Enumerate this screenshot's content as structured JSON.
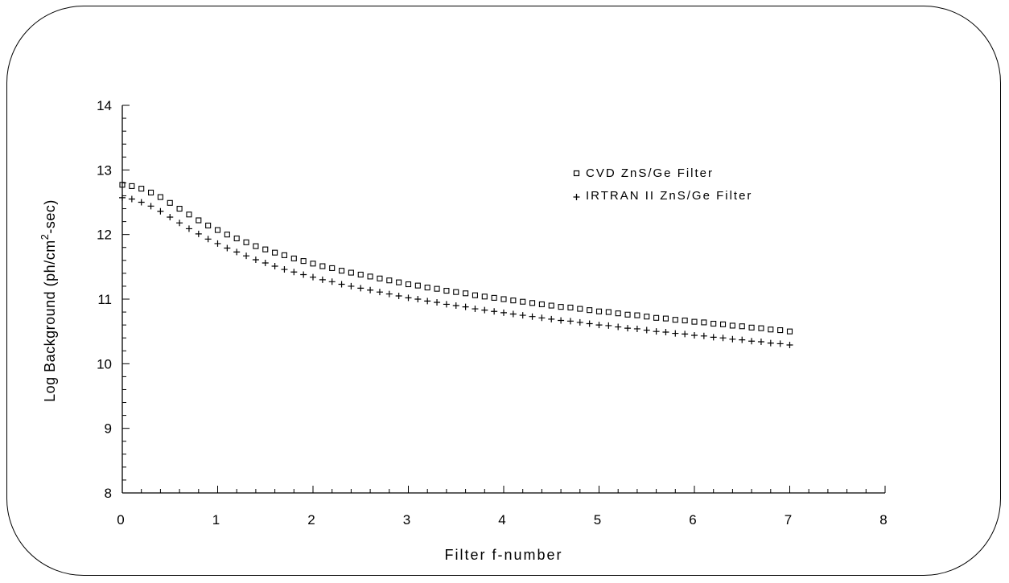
{
  "chart_data": {
    "type": "scatter",
    "title": "",
    "xlabel": "Filter f-number",
    "ylabel_main": "Log Background (ph/cm",
    "ylabel_sup": "2",
    "ylabel_tail": "-sec)",
    "xlim": [
      0,
      8
    ],
    "ylim": [
      8,
      14
    ],
    "xticks": [
      0,
      1,
      2,
      3,
      4,
      5,
      6,
      7,
      8
    ],
    "yticks": [
      8,
      9,
      10,
      11,
      12,
      13,
      14
    ],
    "legend_position": "top-right",
    "series": [
      {
        "name": "CVD ZnS/Ge Filter",
        "marker": "square",
        "x": [
          0,
          0.1,
          0.2,
          0.3,
          0.4,
          0.5,
          0.6,
          0.7,
          0.8,
          0.9,
          1.0,
          1.1,
          1.2,
          1.3,
          1.4,
          1.5,
          1.6,
          1.7,
          1.8,
          1.9,
          2.0,
          2.1,
          2.2,
          2.3,
          2.4,
          2.5,
          2.6,
          2.7,
          2.8,
          2.9,
          3.0,
          3.1,
          3.2,
          3.3,
          3.4,
          3.5,
          3.6,
          3.7,
          3.8,
          3.9,
          4.0,
          4.1,
          4.2,
          4.3,
          4.4,
          4.5,
          4.6,
          4.7,
          4.8,
          4.9,
          5.0,
          5.1,
          5.2,
          5.3,
          5.4,
          5.5,
          5.6,
          5.7,
          5.8,
          5.9,
          6.0,
          6.1,
          6.2,
          6.3,
          6.4,
          6.5,
          6.6,
          6.7,
          6.8,
          6.9,
          7.0
        ],
        "y": [
          12.77,
          12.75,
          12.71,
          12.65,
          12.58,
          12.49,
          12.4,
          12.31,
          12.22,
          12.14,
          12.07,
          12.0,
          11.94,
          11.88,
          11.82,
          11.77,
          11.72,
          11.68,
          11.63,
          11.59,
          11.55,
          11.51,
          11.48,
          11.44,
          11.41,
          11.38,
          11.35,
          11.32,
          11.29,
          11.26,
          11.23,
          11.21,
          11.18,
          11.16,
          11.13,
          11.11,
          11.09,
          11.06,
          11.04,
          11.02,
          11.0,
          10.98,
          10.96,
          10.94,
          10.92,
          10.9,
          10.88,
          10.87,
          10.85,
          10.83,
          10.81,
          10.8,
          10.78,
          10.76,
          10.75,
          10.73,
          10.71,
          10.7,
          10.68,
          10.67,
          10.65,
          10.64,
          10.62,
          10.61,
          10.59,
          10.58,
          10.56,
          10.55,
          10.53,
          10.52,
          10.5
        ]
      },
      {
        "name": "IRTRAN II ZnS/Ge Filter",
        "marker": "plus",
        "x": [
          0,
          0.1,
          0.2,
          0.3,
          0.4,
          0.5,
          0.6,
          0.7,
          0.8,
          0.9,
          1.0,
          1.1,
          1.2,
          1.3,
          1.4,
          1.5,
          1.6,
          1.7,
          1.8,
          1.9,
          2.0,
          2.1,
          2.2,
          2.3,
          2.4,
          2.5,
          2.6,
          2.7,
          2.8,
          2.9,
          3.0,
          3.1,
          3.2,
          3.3,
          3.4,
          3.5,
          3.6,
          3.7,
          3.8,
          3.9,
          4.0,
          4.1,
          4.2,
          4.3,
          4.4,
          4.5,
          4.6,
          4.7,
          4.8,
          4.9,
          5.0,
          5.1,
          5.2,
          5.3,
          5.4,
          5.5,
          5.6,
          5.7,
          5.8,
          5.9,
          6.0,
          6.1,
          6.2,
          6.3,
          6.4,
          6.5,
          6.6,
          6.7,
          6.8,
          6.9,
          7.0
        ],
        "y": [
          12.57,
          12.55,
          12.5,
          12.44,
          12.36,
          12.27,
          12.18,
          12.09,
          12.01,
          11.93,
          11.86,
          11.79,
          11.73,
          11.67,
          11.61,
          11.56,
          11.51,
          11.46,
          11.42,
          11.38,
          11.34,
          11.3,
          11.27,
          11.23,
          11.2,
          11.17,
          11.14,
          11.11,
          11.08,
          11.05,
          11.02,
          11.0,
          10.97,
          10.95,
          10.92,
          10.9,
          10.88,
          10.85,
          10.83,
          10.81,
          10.79,
          10.77,
          10.75,
          10.73,
          10.71,
          10.69,
          10.67,
          10.66,
          10.64,
          10.62,
          10.6,
          10.59,
          10.57,
          10.55,
          10.54,
          10.52,
          10.5,
          10.49,
          10.47,
          10.46,
          10.44,
          10.43,
          10.41,
          10.4,
          10.38,
          10.37,
          10.35,
          10.34,
          10.32,
          10.31,
          10.29
        ]
      }
    ]
  }
}
